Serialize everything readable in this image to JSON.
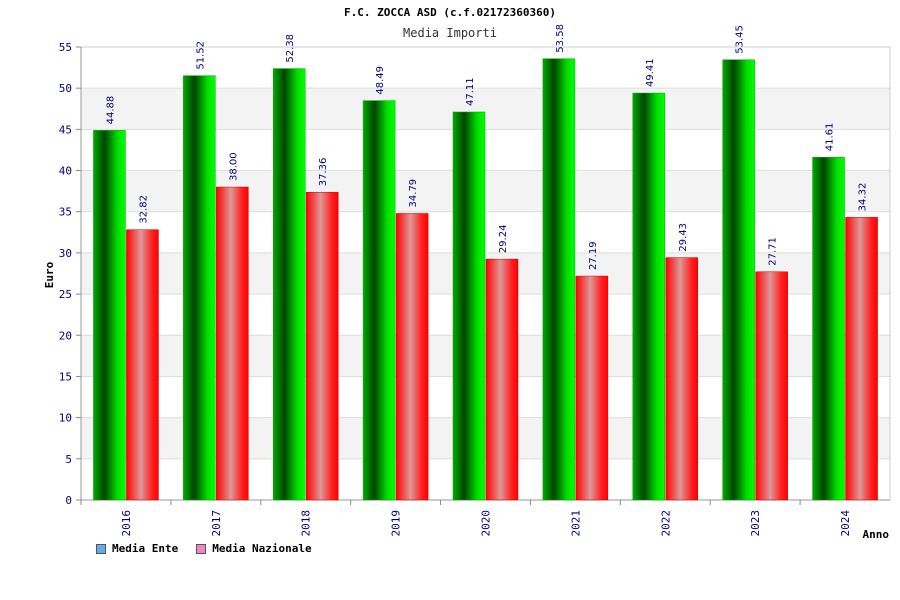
{
  "chart_data": {
    "type": "bar",
    "title": "F.C. ZOCCA ASD (c.f.02172360360)",
    "subtitle": "Media Importi",
    "xlabel": "Anno",
    "ylabel": "Euro",
    "ylim": [
      0,
      55
    ],
    "yticks": [
      0,
      5,
      10,
      15,
      20,
      25,
      30,
      35,
      40,
      45,
      50,
      55
    ],
    "categories": [
      "2016",
      "2017",
      "2018",
      "2019",
      "2020",
      "2021",
      "2022",
      "2023",
      "2024"
    ],
    "series": [
      {
        "name": "Media Ente",
        "values": [
          44.88,
          51.52,
          52.38,
          48.49,
          47.11,
          53.58,
          49.41,
          53.45,
          41.61
        ],
        "labels": [
          "44.88",
          "51.52",
          "52.38",
          "48.49",
          "47.11",
          "53.58",
          "49.41",
          "53.45",
          "41.61"
        ],
        "color": "#00cc00"
      },
      {
        "name": "Media Nazionale",
        "values": [
          32.82,
          38.0,
          37.36,
          34.79,
          29.24,
          27.19,
          29.43,
          27.71,
          34.32
        ],
        "labels": [
          "32.82",
          "38.00",
          "37.36",
          "34.79",
          "29.24",
          "27.19",
          "29.43",
          "27.71",
          "34.32"
        ],
        "color": "#ff0000"
      }
    ],
    "legend_colors": [
      "#66aaee",
      "#ee88bb"
    ],
    "grid": true,
    "legend_position": "bottom-left"
  }
}
